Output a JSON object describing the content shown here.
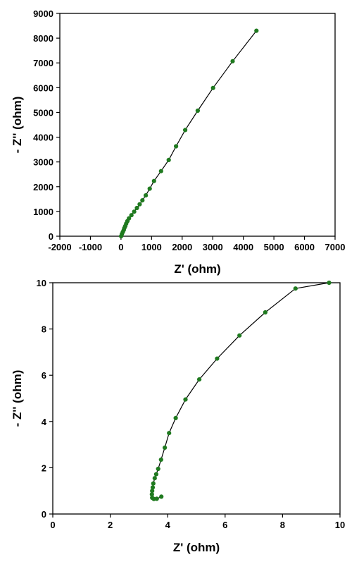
{
  "chart_data": [
    {
      "type": "scatter",
      "title": "",
      "xlabel": "Z' (ohm)",
      "ylabel": "- Z'' (ohm)",
      "xlim": [
        -2000,
        7000
      ],
      "ylim": [
        0,
        9000
      ],
      "xticks": [
        -2000,
        -1000,
        0,
        1000,
        2000,
        3000,
        4000,
        5000,
        6000,
        7000
      ],
      "yticks": [
        0,
        1000,
        2000,
        3000,
        4000,
        5000,
        6000,
        7000,
        8000,
        9000
      ],
      "grid": false,
      "series": [
        {
          "color": "#1f7a1f",
          "line_color": "#000000",
          "x": [
            4.4,
            30,
            60,
            90,
            110,
            140,
            170,
            210,
            260,
            340,
            430,
            520,
            610,
            700,
            810,
            940,
            1080,
            1310,
            1560,
            1800,
            2100,
            2510,
            3010,
            3650,
            4430
          ],
          "y": [
            0.9,
            90,
            170,
            250,
            330,
            410,
            510,
            610,
            720,
            850,
            990,
            1140,
            1290,
            1450,
            1650,
            1920,
            2230,
            2630,
            3080,
            3630,
            4290,
            5070,
            5990,
            7070,
            8300
          ]
        }
      ]
    },
    {
      "type": "scatter",
      "title": "",
      "xlabel": "Z' (ohm)",
      "ylabel": "- Z'' (ohm)",
      "xlim": [
        0,
        10
      ],
      "ylim": [
        0,
        10
      ],
      "xticks": [
        0,
        2,
        4,
        6,
        8,
        10
      ],
      "yticks": [
        0,
        2,
        4,
        6,
        8,
        10
      ],
      "grid": false,
      "series": [
        {
          "color": "#1f7a1f",
          "line_color": "#000000",
          "x": [
            3.78,
            3.62,
            3.52,
            3.46,
            3.45,
            3.46,
            3.48,
            3.5,
            3.55,
            3.6,
            3.67,
            3.77,
            3.9,
            4.05,
            4.28,
            4.62,
            5.1,
            5.72,
            6.5,
            7.4,
            8.45,
            9.62
          ],
          "y": [
            0.75,
            0.66,
            0.65,
            0.7,
            0.85,
            1.0,
            1.15,
            1.32,
            1.55,
            1.72,
            1.95,
            2.35,
            2.87,
            3.5,
            4.15,
            4.95,
            5.82,
            6.72,
            7.72,
            8.72,
            9.75,
            10.0
          ]
        }
      ]
    }
  ]
}
